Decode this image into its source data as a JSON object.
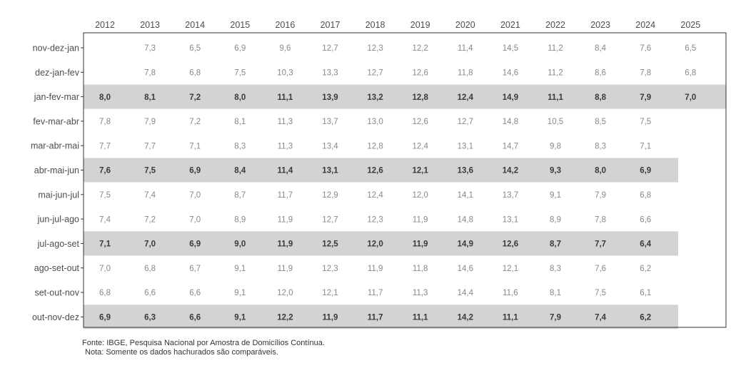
{
  "chart_data": {
    "type": "table",
    "columns": [
      "2012",
      "2013",
      "2014",
      "2015",
      "2016",
      "2017",
      "2018",
      "2019",
      "2020",
      "2021",
      "2022",
      "2023",
      "2024",
      "2025"
    ],
    "rows": [
      {
        "label": "nov-dez-jan",
        "highlight": false,
        "values": [
          "",
          "7,3",
          "6,5",
          "6,9",
          "9,6",
          "12,7",
          "12,3",
          "12,2",
          "11,4",
          "14,5",
          "11,2",
          "8,4",
          "7,6",
          "6,5"
        ]
      },
      {
        "label": "dez-jan-fev",
        "highlight": false,
        "values": [
          "",
          "7,8",
          "6,8",
          "7,5",
          "10,3",
          "13,3",
          "12,7",
          "12,6",
          "11,8",
          "14,6",
          "11,2",
          "8,6",
          "7,8",
          "6,8"
        ]
      },
      {
        "label": "jan-fev-mar",
        "highlight": true,
        "values": [
          "8,0",
          "8,1",
          "7,2",
          "8,0",
          "11,1",
          "13,9",
          "13,2",
          "12,8",
          "12,4",
          "14,9",
          "11,1",
          "8,8",
          "7,9",
          "7,0"
        ]
      },
      {
        "label": "fev-mar-abr",
        "highlight": false,
        "values": [
          "7,8",
          "7,9",
          "7,2",
          "8,1",
          "11,3",
          "13,7",
          "13,0",
          "12,6",
          "12,7",
          "14,8",
          "10,5",
          "8,5",
          "7,5",
          ""
        ]
      },
      {
        "label": "mar-abr-mai",
        "highlight": false,
        "values": [
          "7,7",
          "7,7",
          "7,1",
          "8,3",
          "11,3",
          "13,4",
          "12,8",
          "12,4",
          "13,1",
          "14,7",
          "9,8",
          "8,3",
          "7,1",
          ""
        ]
      },
      {
        "label": "abr-mai-jun",
        "highlight": true,
        "values": [
          "7,6",
          "7,5",
          "6,9",
          "8,4",
          "11,4",
          "13,1",
          "12,6",
          "12,1",
          "13,6",
          "14,2",
          "9,3",
          "8,0",
          "6,9",
          ""
        ]
      },
      {
        "label": "mai-jun-jul",
        "highlight": false,
        "values": [
          "7,5",
          "7,4",
          "7,0",
          "8,7",
          "11,7",
          "12,9",
          "12,4",
          "12,0",
          "14,1",
          "13,7",
          "9,1",
          "7,9",
          "6,8",
          ""
        ]
      },
      {
        "label": "jun-jul-ago",
        "highlight": false,
        "values": [
          "7,4",
          "7,2",
          "7,0",
          "8,9",
          "11,9",
          "12,7",
          "12,3",
          "11,9",
          "14,8",
          "13,1",
          "8,9",
          "7,8",
          "6,6",
          ""
        ]
      },
      {
        "label": "jul-ago-set",
        "highlight": true,
        "values": [
          "7,1",
          "7,0",
          "6,9",
          "9,0",
          "11,9",
          "12,5",
          "12,0",
          "11,9",
          "14,9",
          "12,6",
          "8,7",
          "7,7",
          "6,4",
          ""
        ]
      },
      {
        "label": "ago-set-out",
        "highlight": false,
        "values": [
          "7,0",
          "6,8",
          "6,7",
          "9,1",
          "11,9",
          "12,3",
          "11,9",
          "11,8",
          "14,6",
          "12,1",
          "8,3",
          "7,6",
          "6,2",
          ""
        ]
      },
      {
        "label": "set-out-nov",
        "highlight": false,
        "values": [
          "6,8",
          "6,6",
          "6,6",
          "9,1",
          "12,0",
          "12,1",
          "11,7",
          "11,3",
          "14,4",
          "11,6",
          "8,1",
          "7,5",
          "6,1",
          ""
        ]
      },
      {
        "label": "out-nov-dez",
        "highlight": true,
        "values": [
          "6,9",
          "6,3",
          "6,6",
          "9,1",
          "12,2",
          "11,9",
          "11,7",
          "11,1",
          "14,2",
          "11,1",
          "7,9",
          "7,4",
          "6,2",
          ""
        ]
      }
    ],
    "highlight_color": "#d3d3d3"
  },
  "footnotes": {
    "source": "Fonte: IBGE, Pesquisa Nacional por Amostra de Domicílios Contínua.",
    "note": "Nota: Somente os dados hachurados são comparáveis."
  }
}
